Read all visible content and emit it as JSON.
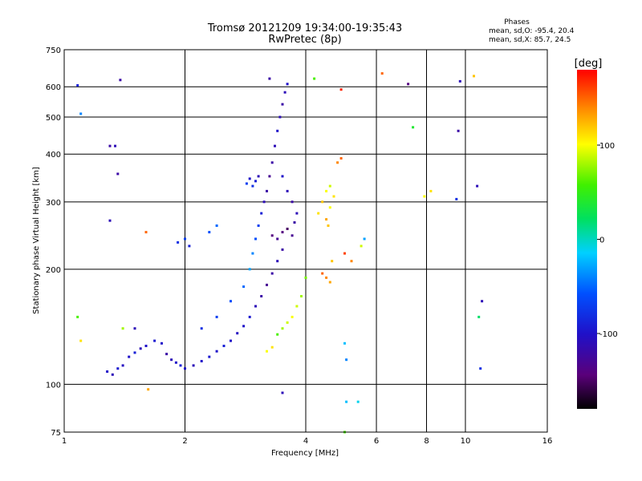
{
  "chart_data": {
    "type": "scatter",
    "title": "Tromsø 20121209 19:34:00-19:35:43",
    "subtitle": "RwPretec (8p)",
    "stats": {
      "heading": "Phases",
      "line_o": "mean, sd,O: -95.4, 20.4",
      "line_x": "mean, sd,X:  85.7, 24.5"
    },
    "xlabel": "Frequency [MHz]",
    "ylabel": "Stationary phase Virtual Height [km]",
    "x_scale": "log2",
    "y_scale": "log",
    "xlim": [
      1,
      16
    ],
    "ylim": [
      75,
      750
    ],
    "x_ticks": [
      1,
      2,
      4,
      6,
      8,
      10,
      16
    ],
    "x_tick_labels": [
      "1",
      "2",
      "4",
      "6",
      "8",
      "10",
      "16"
    ],
    "x_gridlines": [
      2,
      4,
      6,
      8,
      10
    ],
    "y_ticks": [
      75,
      100,
      200,
      300,
      400,
      500,
      600,
      750
    ],
    "y_tick_labels": [
      "75",
      "100",
      "200",
      "300",
      "400",
      "500",
      "600",
      "750"
    ],
    "y_gridlines": [
      100,
      200,
      300,
      400,
      500,
      600
    ],
    "grid": true,
    "colorbar": {
      "label": "[deg]",
      "range": [
        -180,
        180
      ],
      "ticks": [
        100,
        0,
        -100
      ],
      "tick_labels": [
        "100",
        "0",
        "-100"
      ],
      "colormap": "rainbow-black-to-red"
    },
    "series": [
      {
        "points": [
          [
            1.28,
            108,
            -100
          ],
          [
            1.32,
            106,
            -110
          ],
          [
            1.36,
            110,
            -95
          ],
          [
            1.4,
            112,
            -105
          ],
          [
            1.45,
            118,
            -100
          ],
          [
            1.5,
            121,
            -90
          ],
          [
            1.55,
            124,
            -110
          ],
          [
            1.6,
            126,
            -100
          ],
          [
            1.68,
            130,
            -95
          ],
          [
            1.75,
            128,
            -100
          ],
          [
            1.8,
            120,
            -120
          ],
          [
            1.85,
            116,
            -110
          ],
          [
            1.9,
            114,
            -100
          ],
          [
            1.95,
            112,
            -90
          ],
          [
            2.0,
            110,
            -100
          ],
          [
            2.1,
            112,
            -110
          ],
          [
            2.2,
            115,
            -100
          ],
          [
            2.3,
            118,
            -95
          ],
          [
            2.4,
            122,
            -100
          ],
          [
            2.5,
            126,
            -90
          ],
          [
            2.6,
            130,
            -100
          ],
          [
            2.7,
            136,
            -105
          ],
          [
            2.8,
            142,
            -100
          ],
          [
            2.9,
            150,
            -95
          ],
          [
            3.0,
            160,
            -110
          ],
          [
            3.1,
            170,
            -120
          ],
          [
            3.2,
            182,
            -130
          ],
          [
            3.3,
            195,
            -120
          ],
          [
            3.4,
            210,
            -110
          ],
          [
            3.5,
            225,
            -120
          ],
          [
            2.2,
            140,
            -80
          ],
          [
            2.4,
            150,
            -70
          ],
          [
            2.6,
            165,
            -60
          ],
          [
            2.8,
            180,
            -50
          ],
          [
            2.9,
            200,
            -30
          ],
          [
            2.95,
            220,
            -40
          ],
          [
            3.0,
            240,
            -60
          ],
          [
            3.05,
            260,
            -70
          ],
          [
            3.1,
            280,
            -90
          ],
          [
            3.15,
            300,
            -110
          ],
          [
            3.2,
            320,
            -120
          ],
          [
            3.25,
            350,
            -130
          ],
          [
            3.3,
            380,
            -120
          ],
          [
            3.35,
            420,
            -110
          ],
          [
            3.4,
            460,
            -100
          ],
          [
            3.45,
            500,
            -110
          ],
          [
            3.5,
            540,
            -120
          ],
          [
            3.55,
            580,
            -110
          ],
          [
            3.6,
            610,
            -100
          ],
          [
            3.25,
            630,
            -120
          ],
          [
            3.0,
            340,
            -90
          ],
          [
            2.95,
            330,
            -80
          ],
          [
            2.9,
            345,
            -100
          ],
          [
            2.85,
            335,
            -70
          ],
          [
            3.05,
            350,
            -110
          ],
          [
            3.3,
            245,
            -140
          ],
          [
            3.4,
            240,
            -130
          ],
          [
            3.5,
            250,
            -140
          ],
          [
            3.6,
            255,
            -150
          ],
          [
            3.7,
            245,
            -130
          ],
          [
            3.75,
            265,
            -120
          ],
          [
            3.8,
            280,
            -110
          ],
          [
            3.7,
            300,
            -120
          ],
          [
            3.6,
            320,
            -110
          ],
          [
            3.5,
            350,
            -100
          ],
          [
            3.4,
            135,
            60
          ],
          [
            3.5,
            140,
            80
          ],
          [
            3.6,
            145,
            90
          ],
          [
            3.7,
            150,
            100
          ],
          [
            3.3,
            125,
            110
          ],
          [
            3.2,
            122,
            100
          ],
          [
            3.8,
            160,
            90
          ],
          [
            3.9,
            170,
            80
          ],
          [
            4.0,
            190,
            70
          ],
          [
            4.3,
            280,
            110
          ],
          [
            4.4,
            300,
            120
          ],
          [
            4.5,
            320,
            100
          ],
          [
            4.6,
            330,
            90
          ],
          [
            4.5,
            270,
            130
          ],
          [
            4.55,
            260,
            120
          ],
          [
            4.6,
            290,
            100
          ],
          [
            4.7,
            310,
            110
          ],
          [
            4.4,
            195,
            150
          ],
          [
            4.5,
            190,
            140
          ],
          [
            4.6,
            185,
            130
          ],
          [
            4.65,
            210,
            120
          ],
          [
            4.8,
            380,
            140
          ],
          [
            4.9,
            390,
            150
          ],
          [
            5.0,
            220,
            160
          ],
          [
            5.2,
            210,
            140
          ],
          [
            5.5,
            230,
            90
          ],
          [
            5.6,
            240,
            -30
          ],
          [
            6.2,
            650,
            150
          ],
          [
            7.2,
            610,
            -140
          ],
          [
            7.4,
            470,
            40
          ],
          [
            7.9,
            310,
            100
          ],
          [
            8.2,
            320,
            110
          ],
          [
            9.5,
            305,
            -80
          ],
          [
            9.6,
            460,
            -120
          ],
          [
            9.7,
            620,
            -110
          ],
          [
            10.5,
            640,
            120
          ],
          [
            10.7,
            330,
            -110
          ],
          [
            11.0,
            165,
            -110
          ],
          [
            10.8,
            150,
            20
          ],
          [
            10.9,
            110,
            -80
          ],
          [
            1.08,
            150,
            60
          ],
          [
            1.1,
            130,
            110
          ],
          [
            1.08,
            605,
            -90
          ],
          [
            1.1,
            510,
            -40
          ],
          [
            1.3,
            420,
            -120
          ],
          [
            1.34,
            420,
            -110
          ],
          [
            1.36,
            355,
            -120
          ],
          [
            1.38,
            625,
            -120
          ],
          [
            1.3,
            268,
            -110
          ],
          [
            1.5,
            140,
            -110
          ],
          [
            1.6,
            250,
            150
          ],
          [
            1.62,
            97,
            130
          ],
          [
            1.92,
            235,
            -80
          ],
          [
            2.0,
            240,
            -70
          ],
          [
            2.05,
            230,
            -90
          ],
          [
            2.3,
            250,
            -60
          ],
          [
            2.4,
            260,
            -50
          ],
          [
            3.5,
            95,
            -110
          ],
          [
            5.0,
            75,
            60
          ],
          [
            5.05,
            90,
            -20
          ],
          [
            5.0,
            128,
            -20
          ],
          [
            5.05,
            116,
            -40
          ],
          [
            5.4,
            90,
            -10
          ],
          [
            4.2,
            630,
            60
          ],
          [
            4.9,
            590,
            170
          ],
          [
            1.4,
            140,
            80
          ]
        ]
      }
    ]
  }
}
